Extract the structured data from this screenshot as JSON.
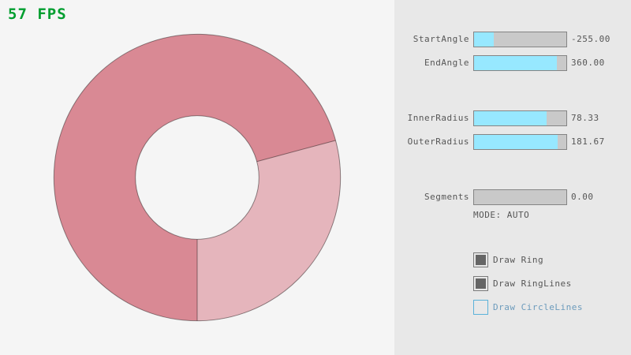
{
  "fps": {
    "text": "57 FPS",
    "color": "#009E2F"
  },
  "ring": {
    "start_angle": -255,
    "end_angle": 360,
    "inner_radius": 78.33,
    "outer_radius": 181.67,
    "color_single_pass": "#E5B5BC",
    "color_overlap_pass": "#D98994",
    "line_color": "rgba(0,0,0,0.42)",
    "background": "#F5F5F5"
  },
  "panel": {
    "background": "#E8E8E8",
    "sliders": [
      {
        "id": "start-angle",
        "label": "StartAngle",
        "value_text": "-255.00",
        "fill_pct": 21.5
      },
      {
        "id": "end-angle",
        "label": "EndAngle",
        "value_text": "360.00",
        "fill_pct": 90.0
      },
      {
        "id": "inner-radius",
        "label": "InnerRadius",
        "value_text": "78.33",
        "fill_pct": 78.3
      },
      {
        "id": "outer-radius",
        "label": "OuterRadius",
        "value_text": "181.67",
        "fill_pct": 90.8
      },
      {
        "id": "segments",
        "label": "Segments",
        "value_text": "0.00",
        "fill_pct": 0
      }
    ],
    "mode_text": "MODE: AUTO",
    "checkboxes": [
      {
        "id": "draw-ring",
        "label": "Draw Ring",
        "checked": true
      },
      {
        "id": "draw-ringlines",
        "label": "Draw RingLines",
        "checked": true
      },
      {
        "id": "draw-circlelines",
        "label": "Draw CircleLines",
        "checked": false
      }
    ]
  },
  "colors": {
    "slider_border": "#848484",
    "slider_track": "#C9C9C9",
    "slider_fill": "#97E8FF",
    "checkbox_border": "#7A7A7A",
    "checkbox_check": "#656565",
    "unchecked_accent_border": "#5BB2D9",
    "unchecked_accent_text": "#6C9BBC",
    "text_gray": "#565656"
  }
}
